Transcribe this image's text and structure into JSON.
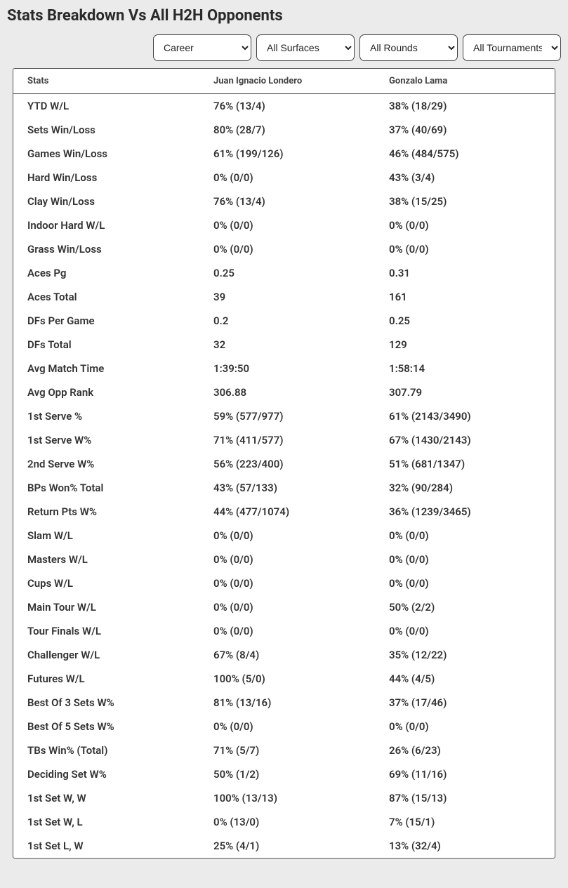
{
  "title": "Stats Breakdown Vs All H2H Opponents",
  "filters": {
    "career": "Career",
    "surface": "All Surfaces",
    "round": "All Rounds",
    "tournament": "All Tournaments"
  },
  "columns": {
    "stat": "Stats",
    "p1": "Juan Ignacio Londero",
    "p2": "Gonzalo Lama"
  },
  "rows": [
    {
      "stat": "YTD W/L",
      "p1": "76% (13/4)",
      "p2": "38% (18/29)"
    },
    {
      "stat": "Sets Win/Loss",
      "p1": "80% (28/7)",
      "p2": "37% (40/69)"
    },
    {
      "stat": "Games Win/Loss",
      "p1": "61% (199/126)",
      "p2": "46% (484/575)"
    },
    {
      "stat": "Hard Win/Loss",
      "p1": "0% (0/0)",
      "p2": "43% (3/4)"
    },
    {
      "stat": "Clay Win/Loss",
      "p1": "76% (13/4)",
      "p2": "38% (15/25)"
    },
    {
      "stat": "Indoor Hard W/L",
      "p1": "0% (0/0)",
      "p2": "0% (0/0)"
    },
    {
      "stat": "Grass Win/Loss",
      "p1": "0% (0/0)",
      "p2": "0% (0/0)"
    },
    {
      "stat": "Aces Pg",
      "p1": "0.25",
      "p2": "0.31"
    },
    {
      "stat": "Aces Total",
      "p1": "39",
      "p2": "161"
    },
    {
      "stat": "DFs Per Game",
      "p1": "0.2",
      "p2": "0.25"
    },
    {
      "stat": "DFs Total",
      "p1": "32",
      "p2": "129"
    },
    {
      "stat": "Avg Match Time",
      "p1": "1:39:50",
      "p2": "1:58:14"
    },
    {
      "stat": "Avg Opp Rank",
      "p1": "306.88",
      "p2": "307.79"
    },
    {
      "stat": "1st Serve %",
      "p1": "59% (577/977)",
      "p2": "61% (2143/3490)"
    },
    {
      "stat": "1st Serve W%",
      "p1": "71% (411/577)",
      "p2": "67% (1430/2143)"
    },
    {
      "stat": "2nd Serve W%",
      "p1": "56% (223/400)",
      "p2": "51% (681/1347)"
    },
    {
      "stat": "BPs Won% Total",
      "p1": "43% (57/133)",
      "p2": "32% (90/284)"
    },
    {
      "stat": "Return Pts W%",
      "p1": "44% (477/1074)",
      "p2": "36% (1239/3465)"
    },
    {
      "stat": "Slam W/L",
      "p1": "0% (0/0)",
      "p2": "0% (0/0)"
    },
    {
      "stat": "Masters W/L",
      "p1": "0% (0/0)",
      "p2": "0% (0/0)"
    },
    {
      "stat": "Cups W/L",
      "p1": "0% (0/0)",
      "p2": "0% (0/0)"
    },
    {
      "stat": "Main Tour W/L",
      "p1": "0% (0/0)",
      "p2": "50% (2/2)"
    },
    {
      "stat": "Tour Finals W/L",
      "p1": "0% (0/0)",
      "p2": "0% (0/0)"
    },
    {
      "stat": "Challenger W/L",
      "p1": "67% (8/4)",
      "p2": "35% (12/22)"
    },
    {
      "stat": "Futures W/L",
      "p1": "100% (5/0)",
      "p2": "44% (4/5)"
    },
    {
      "stat": "Best Of 3 Sets W%",
      "p1": "81% (13/16)",
      "p2": "37% (17/46)"
    },
    {
      "stat": "Best Of 5 Sets W%",
      "p1": "0% (0/0)",
      "p2": "0% (0/0)"
    },
    {
      "stat": "TBs Win% (Total)",
      "p1": "71% (5/7)",
      "p2": "26% (6/23)"
    },
    {
      "stat": "Deciding Set W%",
      "p1": "50% (1/2)",
      "p2": "69% (11/16)"
    },
    {
      "stat": "1st Set W, W",
      "p1": "100% (13/13)",
      "p2": "87% (15/13)"
    },
    {
      "stat": "1st Set W, L",
      "p1": "0% (13/0)",
      "p2": "7% (15/1)"
    },
    {
      "stat": "1st Set L, W",
      "p1": "25% (4/1)",
      "p2": "13% (32/4)"
    }
  ]
}
